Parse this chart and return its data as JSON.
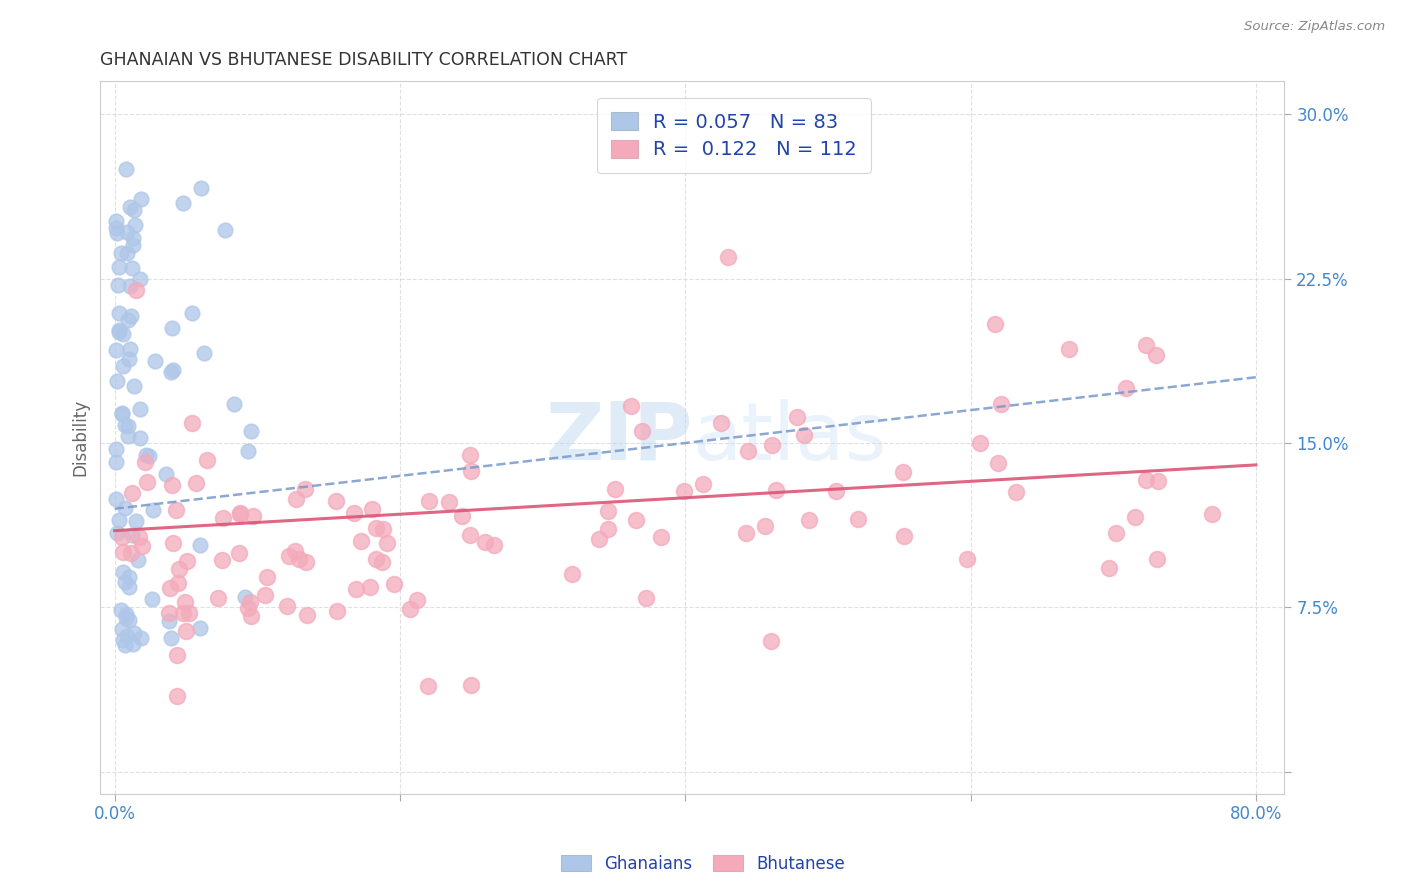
{
  "title": "GHANAIAN VS BHUTANESE DISABILITY CORRELATION CHART",
  "source": "Source: ZipAtlas.com",
  "ylabel": "Disability",
  "xlim": [
    0.0,
    0.8
  ],
  "ylim": [
    0.0,
    0.3
  ],
  "background_color": "#ffffff",
  "grid_color": "#cccccc",
  "legend_R1": "0.057",
  "legend_N1": "83",
  "legend_R2": "0.122",
  "legend_N2": "112",
  "ghanaian_color": "#aec6e8",
  "bhutanese_color": "#f4aabb",
  "trend_ghanaian_color": "#7799cc",
  "trend_bhutanese_color": "#dd5577",
  "tick_label_color": "#4488cc",
  "legend_text_color": "#2244aa",
  "watermark_color": "#cce0f0",
  "seed": 12345
}
